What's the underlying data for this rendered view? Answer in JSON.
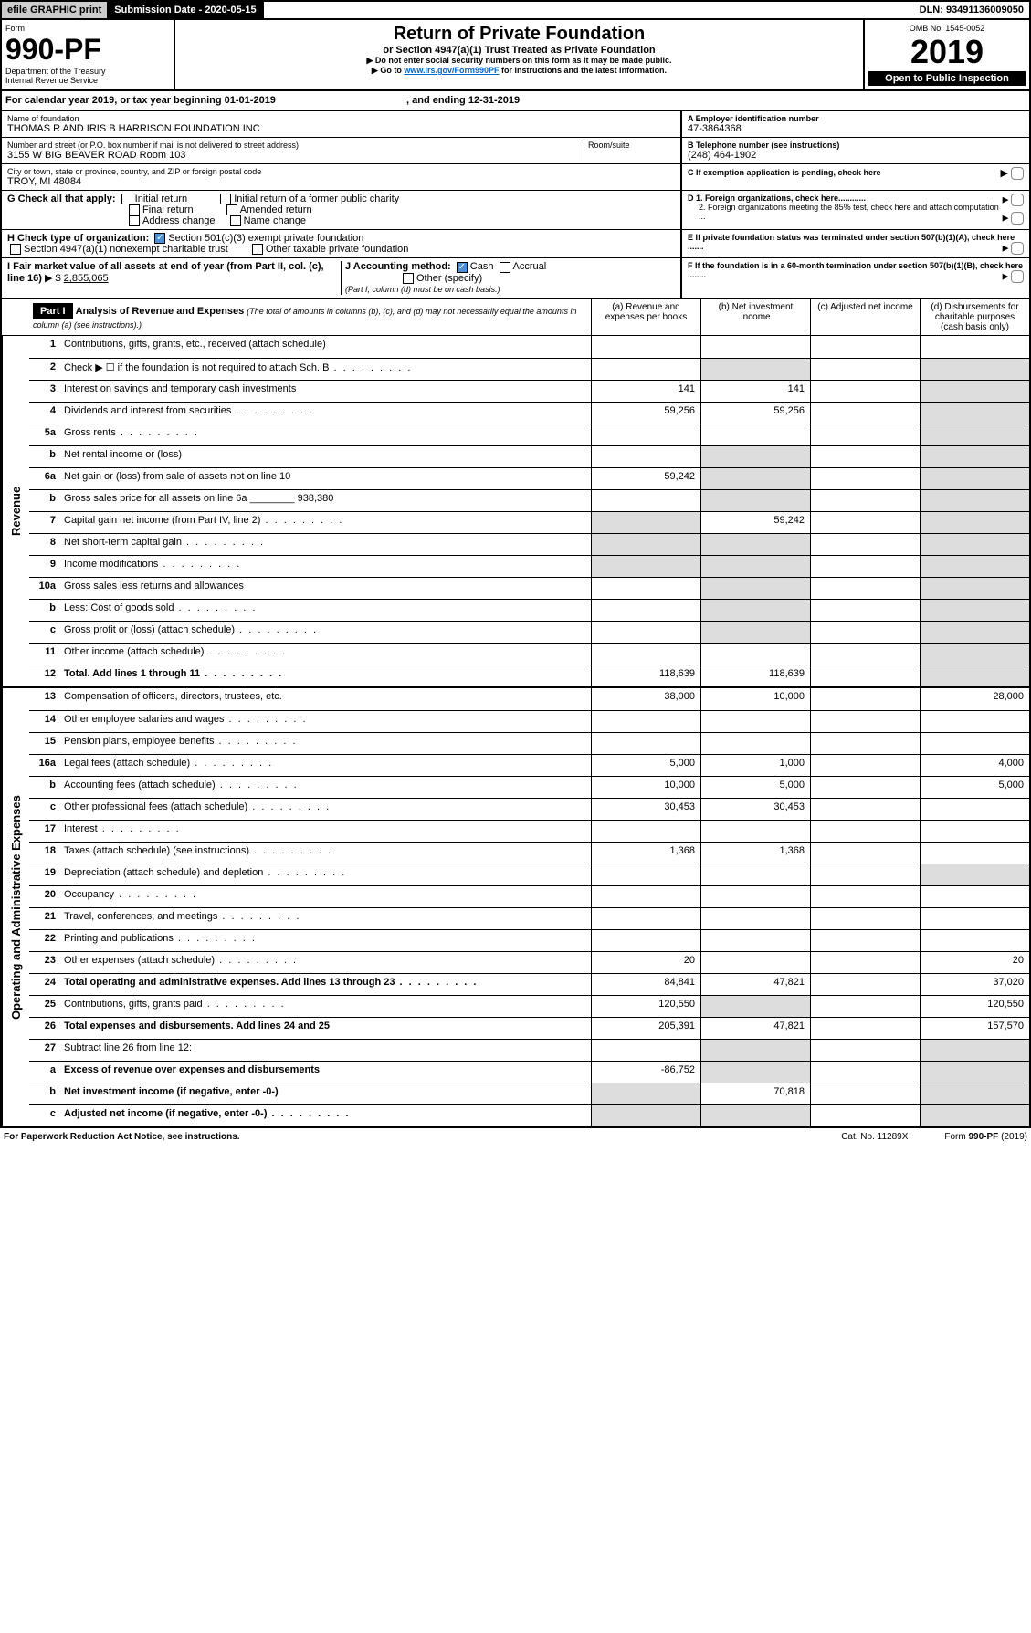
{
  "topbar": {
    "efile": "efile GRAPHIC print",
    "submission": "Submission Date - 2020-05-15",
    "dln": "DLN: 93491136009050"
  },
  "header": {
    "form_label": "Form",
    "form_number": "990-PF",
    "dept": "Department of the Treasury",
    "irs": "Internal Revenue Service",
    "title": "Return of Private Foundation",
    "subtitle": "or Section 4947(a)(1) Trust Treated as Private Foundation",
    "note1": "▶ Do not enter social security numbers on this form as it may be made public.",
    "note2_pre": "▶ Go to ",
    "note2_link": "www.irs.gov/Form990PF",
    "note2_post": " for instructions and the latest information.",
    "omb": "OMB No. 1545-0052",
    "year": "2019",
    "open": "Open to Public Inspection"
  },
  "calendar": {
    "text_pre": "For calendar year 2019, or tax year beginning ",
    "begin": "01-01-2019",
    "mid": " , and ending ",
    "end": "12-31-2019"
  },
  "info": {
    "name_label": "Name of foundation",
    "name": "THOMAS R AND IRIS B HARRISON FOUNDATION INC",
    "addr_label": "Number and street (or P.O. box number if mail is not delivered to street address)",
    "addr": "3155 W BIG BEAVER ROAD Room 103",
    "room_label": "Room/suite",
    "city_label": "City or town, state or province, country, and ZIP or foreign postal code",
    "city": "TROY, MI  48084",
    "ein_label": "A Employer identification number",
    "ein": "47-3864368",
    "phone_label": "B Telephone number (see instructions)",
    "phone": "(248) 464-1902",
    "c_label": "C If exemption application is pending, check here",
    "g_label": "G Check all that apply:",
    "g_opts": [
      "Initial return",
      "Initial return of a former public charity",
      "Final return",
      "Amended return",
      "Address change",
      "Name change"
    ],
    "h_label": "H Check type of organization:",
    "h_opt1": "Section 501(c)(3) exempt private foundation",
    "h_opt2": "Section 4947(a)(1) nonexempt charitable trust",
    "h_opt3": "Other taxable private foundation",
    "d1": "D 1. Foreign organizations, check here............",
    "d2": "2. Foreign organizations meeting the 85% test, check here and attach computation ...",
    "e": "E  If private foundation status was terminated under section 507(b)(1)(A), check here .......",
    "f": "F  If the foundation is in a 60-month termination under section 507(b)(1)(B), check here ........",
    "i_label": "I Fair market value of all assets at end of year (from Part II, col. (c), line 16)",
    "i_val": "2,855,065",
    "j_label": "J Accounting method:",
    "j_cash": "Cash",
    "j_accrual": "Accrual",
    "j_other": "Other (specify)",
    "j_note": "(Part I, column (d) must be on cash basis.)"
  },
  "part1": {
    "label": "Part I",
    "title": "Analysis of Revenue and Expenses",
    "title_note": "(The total of amounts in columns (b), (c), and (d) may not necessarily equal the amounts in column (a) (see instructions).)",
    "cols": {
      "a": "(a) Revenue and expenses per books",
      "b": "(b) Net investment income",
      "c": "(c) Adjusted net income",
      "d": "(d) Disbursements for charitable purposes (cash basis only)"
    }
  },
  "sections": {
    "revenue": "Revenue",
    "expenses": "Operating and Administrative Expenses"
  },
  "lines": [
    {
      "n": "1",
      "d": "Contributions, gifts, grants, etc., received (attach schedule)",
      "a": "",
      "b": "",
      "c": "",
      "dd": "",
      "bg": false,
      "dg": false
    },
    {
      "n": "2",
      "d": "Check ▶ ☐ if the foundation is not required to attach Sch. B",
      "a": "",
      "b": "",
      "c": "",
      "dd": "",
      "bg": true,
      "dg": true,
      "dotted": true
    },
    {
      "n": "3",
      "d": "Interest on savings and temporary cash investments",
      "a": "141",
      "b": "141",
      "c": "",
      "dd": "",
      "bg": false,
      "dg": true
    },
    {
      "n": "4",
      "d": "Dividends and interest from securities",
      "a": "59,256",
      "b": "59,256",
      "c": "",
      "dd": "",
      "bg": false,
      "dg": true,
      "dotted": true
    },
    {
      "n": "5a",
      "d": "Gross rents",
      "a": "",
      "b": "",
      "c": "",
      "dd": "",
      "bg": false,
      "dg": true,
      "dotted": true
    },
    {
      "n": "b",
      "d": "Net rental income or (loss)",
      "a": "",
      "b": "",
      "c": "",
      "dd": "",
      "bg": true,
      "dg": true
    },
    {
      "n": "6a",
      "d": "Net gain or (loss) from sale of assets not on line 10",
      "a": "59,242",
      "b": "",
      "c": "",
      "dd": "",
      "bg": true,
      "dg": true
    },
    {
      "n": "b",
      "d": "Gross sales price for all assets on line 6a ________ 938,380",
      "a": "",
      "b": "",
      "c": "",
      "dd": "",
      "bg": true,
      "dg": true
    },
    {
      "n": "7",
      "d": "Capital gain net income (from Part IV, line 2)",
      "a": "",
      "b": "59,242",
      "c": "",
      "dd": "",
      "ag": true,
      "dg": true,
      "dotted": true
    },
    {
      "n": "8",
      "d": "Net short-term capital gain",
      "a": "",
      "b": "",
      "c": "",
      "dd": "",
      "ag": true,
      "bg": true,
      "dg": true,
      "dotted": true
    },
    {
      "n": "9",
      "d": "Income modifications",
      "a": "",
      "b": "",
      "c": "",
      "dd": "",
      "ag": true,
      "bg": true,
      "dg": true,
      "dotted": true
    },
    {
      "n": "10a",
      "d": "Gross sales less returns and allowances",
      "a": "",
      "b": "",
      "c": "",
      "dd": "",
      "bg": true,
      "dg": true
    },
    {
      "n": "b",
      "d": "Less: Cost of goods sold",
      "a": "",
      "b": "",
      "c": "",
      "dd": "",
      "bg": true,
      "dg": true,
      "dotted": true
    },
    {
      "n": "c",
      "d": "Gross profit or (loss) (attach schedule)",
      "a": "",
      "b": "",
      "c": "",
      "dd": "",
      "bg": true,
      "dg": true,
      "dotted": true
    },
    {
      "n": "11",
      "d": "Other income (attach schedule)",
      "a": "",
      "b": "",
      "c": "",
      "dd": "",
      "dg": true,
      "dotted": true
    },
    {
      "n": "12",
      "d": "Total. Add lines 1 through 11",
      "a": "118,639",
      "b": "118,639",
      "c": "",
      "dd": "",
      "dg": true,
      "bold": true,
      "dotted": true
    },
    {
      "n": "13",
      "d": "Compensation of officers, directors, trustees, etc.",
      "a": "38,000",
      "b": "10,000",
      "c": "",
      "dd": "28,000",
      "sec": "exp"
    },
    {
      "n": "14",
      "d": "Other employee salaries and wages",
      "a": "",
      "b": "",
      "c": "",
      "dd": "",
      "dotted": true
    },
    {
      "n": "15",
      "d": "Pension plans, employee benefits",
      "a": "",
      "b": "",
      "c": "",
      "dd": "",
      "dotted": true
    },
    {
      "n": "16a",
      "d": "Legal fees (attach schedule)",
      "a": "5,000",
      "b": "1,000",
      "c": "",
      "dd": "4,000",
      "dotted": true
    },
    {
      "n": "b",
      "d": "Accounting fees (attach schedule)",
      "a": "10,000",
      "b": "5,000",
      "c": "",
      "dd": "5,000",
      "dotted": true
    },
    {
      "n": "c",
      "d": "Other professional fees (attach schedule)",
      "a": "30,453",
      "b": "30,453",
      "c": "",
      "dd": "",
      "dotted": true
    },
    {
      "n": "17",
      "d": "Interest",
      "a": "",
      "b": "",
      "c": "",
      "dd": "",
      "dotted": true
    },
    {
      "n": "18",
      "d": "Taxes (attach schedule) (see instructions)",
      "a": "1,368",
      "b": "1,368",
      "c": "",
      "dd": "",
      "dotted": true
    },
    {
      "n": "19",
      "d": "Depreciation (attach schedule) and depletion",
      "a": "",
      "b": "",
      "c": "",
      "dd": "",
      "dg": true,
      "dotted": true
    },
    {
      "n": "20",
      "d": "Occupancy",
      "a": "",
      "b": "",
      "c": "",
      "dd": "",
      "dotted": true
    },
    {
      "n": "21",
      "d": "Travel, conferences, and meetings",
      "a": "",
      "b": "",
      "c": "",
      "dd": "",
      "dotted": true
    },
    {
      "n": "22",
      "d": "Printing and publications",
      "a": "",
      "b": "",
      "c": "",
      "dd": "",
      "dotted": true
    },
    {
      "n": "23",
      "d": "Other expenses (attach schedule)",
      "a": "20",
      "b": "",
      "c": "",
      "dd": "20",
      "dotted": true
    },
    {
      "n": "24",
      "d": "Total operating and administrative expenses. Add lines 13 through 23",
      "a": "84,841",
      "b": "47,821",
      "c": "",
      "dd": "37,020",
      "bold": true,
      "dotted": true
    },
    {
      "n": "25",
      "d": "Contributions, gifts, grants paid",
      "a": "120,550",
      "b": "",
      "c": "",
      "dd": "120,550",
      "bg": true,
      "dotted": true
    },
    {
      "n": "26",
      "d": "Total expenses and disbursements. Add lines 24 and 25",
      "a": "205,391",
      "b": "47,821",
      "c": "",
      "dd": "157,570",
      "bold": true
    },
    {
      "n": "27",
      "d": "Subtract line 26 from line 12:",
      "a": "",
      "b": "",
      "c": "",
      "dd": "",
      "bg": true,
      "dg": true
    },
    {
      "n": "a",
      "d": "Excess of revenue over expenses and disbursements",
      "a": "-86,752",
      "b": "",
      "c": "",
      "dd": "",
      "bg": true,
      "dg": true,
      "bold": true
    },
    {
      "n": "b",
      "d": "Net investment income (if negative, enter -0-)",
      "a": "",
      "b": "70,818",
      "c": "",
      "dd": "",
      "ag": true,
      "dg": true,
      "bold": true
    },
    {
      "n": "c",
      "d": "Adjusted net income (if negative, enter -0-)",
      "a": "",
      "b": "",
      "c": "",
      "dd": "",
      "ag": true,
      "bg": true,
      "dg": true,
      "bold": true,
      "dotted": true
    }
  ],
  "footer": {
    "left": "For Paperwork Reduction Act Notice, see instructions.",
    "mid": "Cat. No. 11289X",
    "right": "Form 990-PF (2019)"
  }
}
